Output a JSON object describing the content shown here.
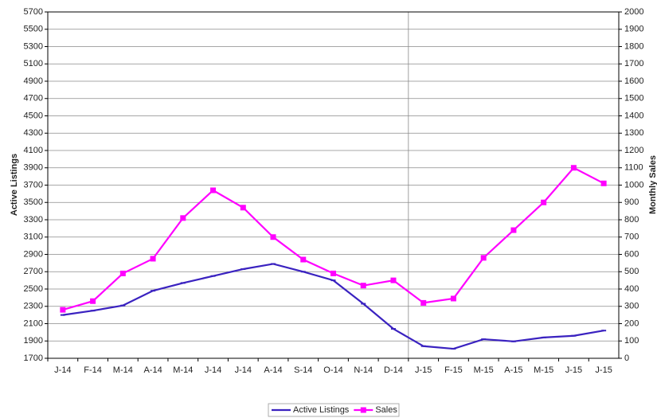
{
  "chart_data": {
    "type": "line",
    "categories": [
      "J-14",
      "F-14",
      "M-14",
      "A-14",
      "M-14",
      "J-14",
      "J-14",
      "A-14",
      "S-14",
      "O-14",
      "N-14",
      "D-14",
      "J-15",
      "F-15",
      "M-15",
      "A-15",
      "M-15",
      "J-15",
      "J-15"
    ],
    "y_label": "Active Listings",
    "y2_label": "Monthly Sales",
    "ylim": [
      1700,
      5700
    ],
    "yticks": [
      1700,
      1900,
      2100,
      2300,
      2500,
      2700,
      2900,
      3100,
      3300,
      3500,
      3700,
      3900,
      4100,
      4300,
      4500,
      4700,
      4900,
      5100,
      5300,
      5500,
      5700
    ],
    "y2lim": [
      0,
      2000
    ],
    "y2ticks": [
      0,
      100,
      200,
      300,
      400,
      500,
      600,
      700,
      800,
      900,
      1000,
      1100,
      1200,
      1300,
      1400,
      1500,
      1600,
      1700,
      1800,
      1900,
      2000
    ],
    "grid": true,
    "legend": "bottom",
    "series": [
      {
        "name": "Active Listings",
        "color": "#3a22c0",
        "values": [
          2200,
          2250,
          2310,
          2480,
          2570,
          2650,
          2730,
          2790,
          2700,
          2600,
          2330,
          2040,
          1840,
          1810,
          1920,
          1895,
          1940,
          1960,
          2020
        ]
      },
      {
        "name": "Sales",
        "color": "#ff00ff",
        "axis": "y2",
        "marker": "square",
        "values": [
          280,
          330,
          490,
          575,
          810,
          970,
          870,
          700,
          570,
          490,
          420,
          450,
          320,
          345,
          580,
          740,
          900,
          1100,
          1010
        ]
      }
    ]
  }
}
